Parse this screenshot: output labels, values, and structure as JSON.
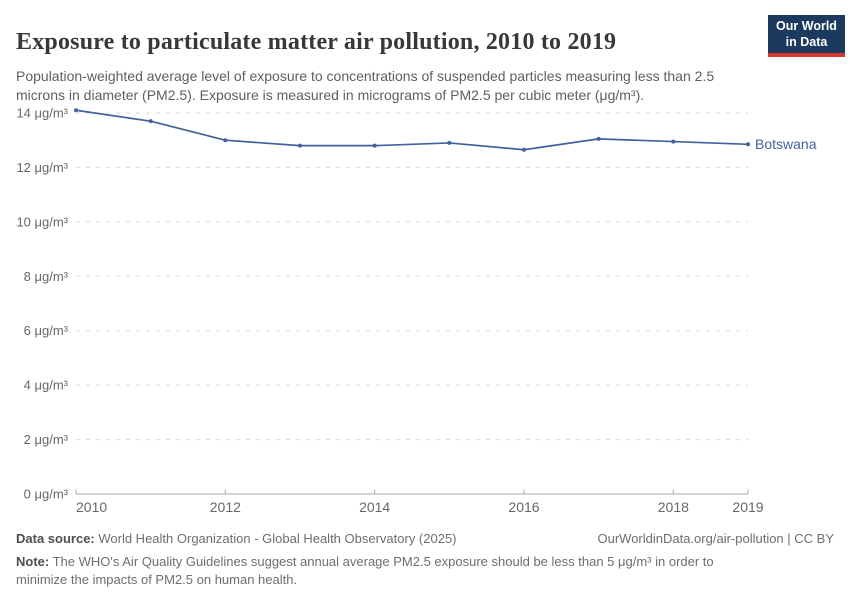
{
  "header": {
    "title": "Exposure to particulate matter air pollution, 2010 to 2019",
    "subtitle": "Population-weighted average level of exposure to concentrations of suspended particles measuring less than 2.5 microns in diameter (PM2.5). Exposure is measured in micrograms of PM2.5 per cubic meter (μg/m³).",
    "logo": {
      "line1": "Our World",
      "line2": "in Data",
      "bg_color": "#1c3a5e",
      "accent_color": "#d6382e"
    }
  },
  "chart_data": {
    "type": "line",
    "title": "Exposure to particulate matter air pollution, 2010 to 2019",
    "xlim": [
      2010,
      2019
    ],
    "ylim": [
      0,
      14
    ],
    "x_ticks": [
      2010,
      2012,
      2014,
      2016,
      2018,
      2019
    ],
    "y_ticks": [
      0,
      2,
      4,
      6,
      8,
      10,
      12,
      14
    ],
    "y_tick_suffix": " μg/m³",
    "grid": "horizontal-dashed",
    "legend": "end-of-line-label",
    "series": [
      {
        "name": "Botswana",
        "color": "#41629e",
        "x": [
          2010,
          2011,
          2012,
          2013,
          2014,
          2015,
          2016,
          2017,
          2018,
          2019
        ],
        "values": [
          14.1,
          13.7,
          13.0,
          12.8,
          12.8,
          12.9,
          12.65,
          13.05,
          12.95,
          12.85
        ]
      }
    ],
    "axis_color": "#a9a9a9",
    "gridline_color": "#dadada",
    "tick_label_color": "#676767"
  },
  "footer": {
    "datasource_label": "Data source:",
    "datasource_value": " World Health Organization - Global Health Observatory (2025)",
    "license": "OurWorldinData.org/air-pollution | CC BY",
    "note_label": "Note:",
    "note_value": " The WHO's Air Quality Guidelines suggest annual average PM2.5 exposure should be less than 5 μg/m³ in order to minimize the impacts of PM2.5 on human health."
  }
}
